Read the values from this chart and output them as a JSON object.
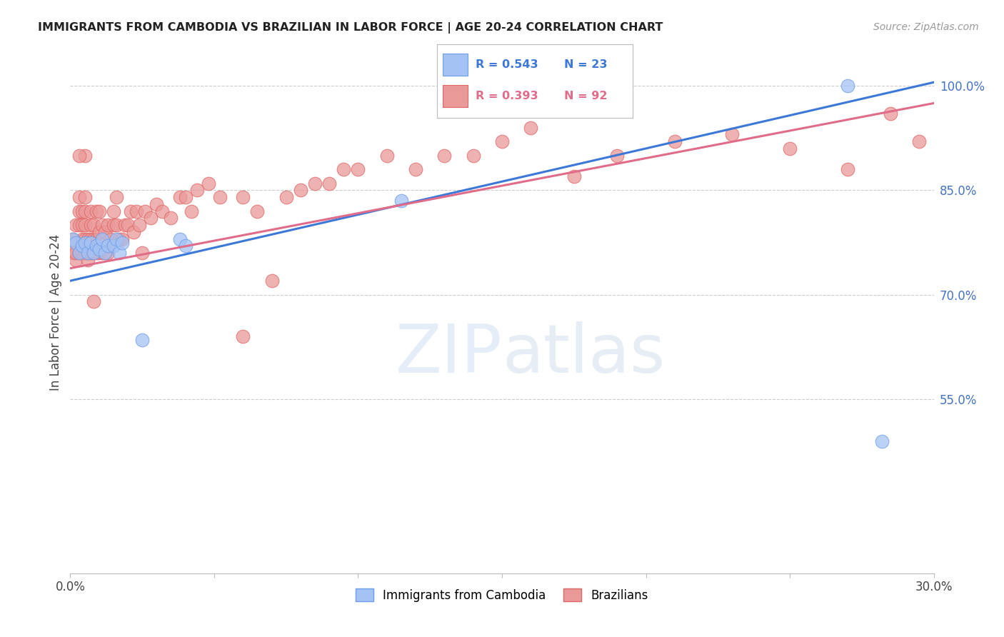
{
  "title": "IMMIGRANTS FROM CAMBODIA VS BRAZILIAN IN LABOR FORCE | AGE 20-24 CORRELATION CHART",
  "source_text": "Source: ZipAtlas.com",
  "ylabel": "In Labor Force | Age 20-24",
  "watermark_zip": "ZIP",
  "watermark_atlas": "atlas",
  "xlim": [
    0.0,
    0.3
  ],
  "ylim": [
    0.3,
    1.05
  ],
  "xticks": [
    0.0,
    0.05,
    0.1,
    0.15,
    0.2,
    0.25,
    0.3
  ],
  "xticklabels": [
    "0.0%",
    "",
    "",
    "",
    "",
    "",
    "30.0%"
  ],
  "yticks_right": [
    0.55,
    0.7,
    0.85,
    1.0
  ],
  "ytick_labels_right": [
    "55.0%",
    "70.0%",
    "85.0%",
    "100.0%"
  ],
  "cambodia_color": "#a4c2f4",
  "cambodia_edge": "#6d9eeb",
  "brazil_color": "#ea9999",
  "brazil_edge": "#e06666",
  "line_cambodia_color": "#3c78d8",
  "line_brazil_color": "#e06c8a",
  "legend_r_cambodia": "R = 0.543",
  "legend_n_cambodia": "N = 23",
  "legend_r_brazil": "R = 0.393",
  "legend_n_brazil": "N = 92",
  "legend_label_cambodia": "Immigrants from Cambodia",
  "legend_label_brazil": "Brazilians",
  "line_cam_x0": 0.0,
  "line_cam_y0": 0.72,
  "line_cam_x1": 0.3,
  "line_cam_y1": 1.005,
  "line_bra_x0": 0.0,
  "line_bra_y0": 0.738,
  "line_bra_x1": 0.3,
  "line_bra_y1": 0.975,
  "cambodia_x": [
    0.001,
    0.002,
    0.003,
    0.004,
    0.005,
    0.006,
    0.007,
    0.008,
    0.009,
    0.01,
    0.011,
    0.012,
    0.013,
    0.015,
    0.016,
    0.017,
    0.018,
    0.025,
    0.038,
    0.04,
    0.115,
    0.27,
    0.282
  ],
  "cambodia_y": [
    0.78,
    0.775,
    0.76,
    0.77,
    0.775,
    0.76,
    0.775,
    0.76,
    0.77,
    0.765,
    0.78,
    0.76,
    0.77,
    0.77,
    0.78,
    0.76,
    0.775,
    0.635,
    0.78,
    0.77,
    0.835,
    1.0,
    0.49
  ],
  "brazil_x": [
    0.001,
    0.001,
    0.002,
    0.002,
    0.002,
    0.003,
    0.003,
    0.003,
    0.003,
    0.004,
    0.004,
    0.004,
    0.004,
    0.005,
    0.005,
    0.005,
    0.005,
    0.005,
    0.006,
    0.006,
    0.006,
    0.007,
    0.007,
    0.007,
    0.007,
    0.008,
    0.008,
    0.008,
    0.009,
    0.009,
    0.009,
    0.01,
    0.01,
    0.01,
    0.011,
    0.011,
    0.012,
    0.012,
    0.013,
    0.013,
    0.014,
    0.015,
    0.015,
    0.016,
    0.016,
    0.017,
    0.018,
    0.019,
    0.02,
    0.021,
    0.022,
    0.023,
    0.024,
    0.025,
    0.026,
    0.028,
    0.03,
    0.032,
    0.035,
    0.038,
    0.04,
    0.042,
    0.044,
    0.048,
    0.052,
    0.06,
    0.065,
    0.07,
    0.075,
    0.08,
    0.085,
    0.09,
    0.095,
    0.1,
    0.11,
    0.12,
    0.13,
    0.14,
    0.15,
    0.16,
    0.175,
    0.19,
    0.21,
    0.23,
    0.25,
    0.27,
    0.285,
    0.295,
    0.06,
    0.005,
    0.003,
    0.008
  ],
  "brazil_y": [
    0.76,
    0.78,
    0.75,
    0.8,
    0.76,
    0.76,
    0.8,
    0.84,
    0.82,
    0.76,
    0.78,
    0.8,
    0.82,
    0.76,
    0.78,
    0.8,
    0.82,
    0.84,
    0.75,
    0.76,
    0.78,
    0.76,
    0.78,
    0.8,
    0.82,
    0.76,
    0.78,
    0.8,
    0.76,
    0.78,
    0.82,
    0.76,
    0.79,
    0.82,
    0.76,
    0.8,
    0.76,
    0.79,
    0.76,
    0.8,
    0.78,
    0.8,
    0.82,
    0.8,
    0.84,
    0.78,
    0.78,
    0.8,
    0.8,
    0.82,
    0.79,
    0.82,
    0.8,
    0.76,
    0.82,
    0.81,
    0.83,
    0.82,
    0.81,
    0.84,
    0.84,
    0.82,
    0.85,
    0.86,
    0.84,
    0.84,
    0.82,
    0.72,
    0.84,
    0.85,
    0.86,
    0.86,
    0.88,
    0.88,
    0.9,
    0.88,
    0.9,
    0.9,
    0.92,
    0.94,
    0.87,
    0.9,
    0.92,
    0.93,
    0.91,
    0.88,
    0.96,
    0.92,
    0.64,
    0.9,
    0.9,
    0.69
  ]
}
